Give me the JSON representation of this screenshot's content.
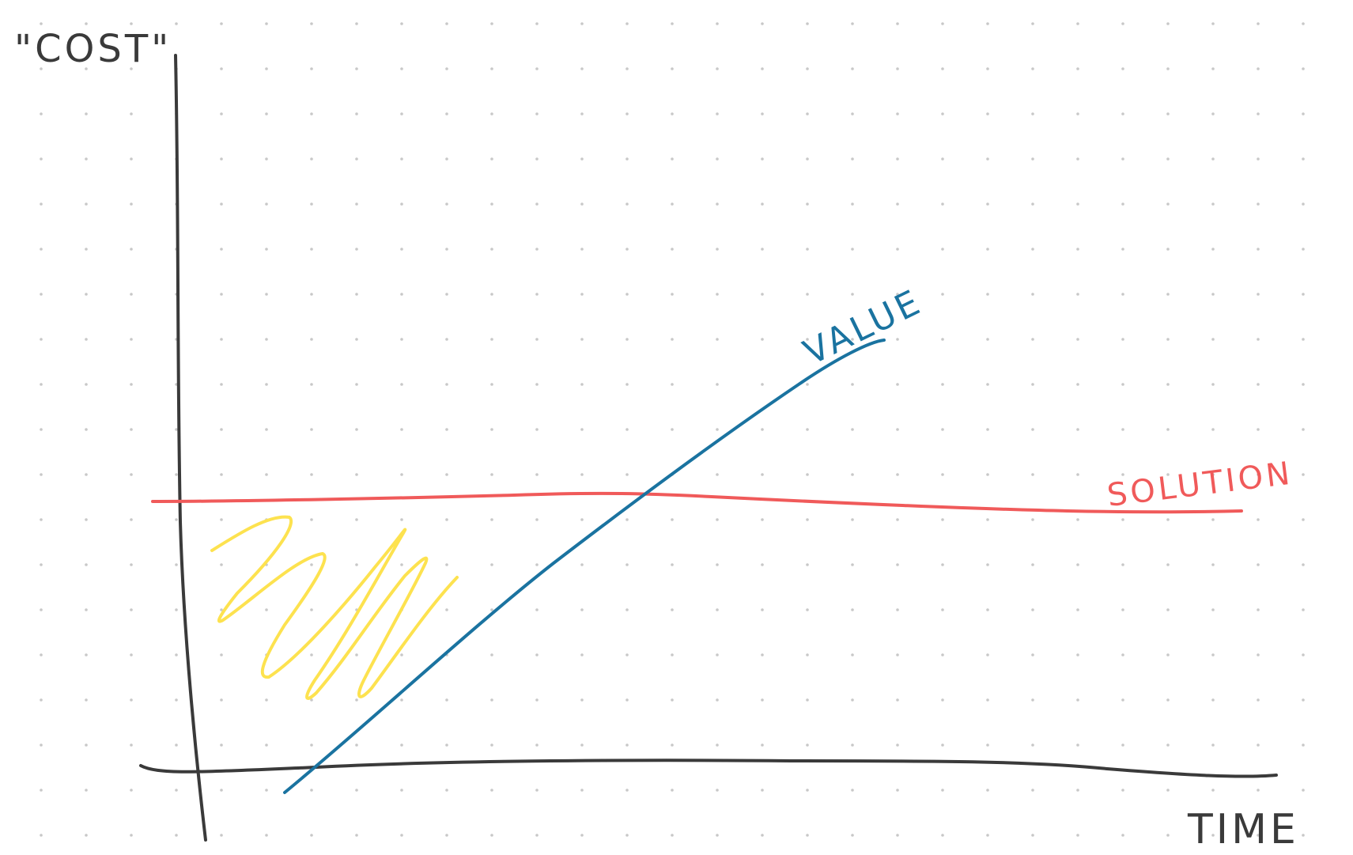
{
  "chart_data": {
    "type": "line",
    "title": "",
    "xlabel": "TIME",
    "ylabel": "\"COST\"",
    "grid": "dot-grid",
    "series": [
      {
        "name": "VALUE",
        "color": "#1a73a0",
        "trend": "rising",
        "x": [
          0.5,
          6.1,
          12.0
        ],
        "y": [
          -0.5,
          7.3,
          13.8
        ]
      },
      {
        "name": "SOLUTION",
        "color": "#f05a5a",
        "trend": "flat",
        "x": [
          -0.5,
          6.0,
          18.0
        ],
        "y": [
          7.4,
          7.5,
          7.1
        ]
      }
    ],
    "annotations": [
      {
        "type": "scribble-fill",
        "color": "#fde24f",
        "region": "below SOLUTION, left of VALUE"
      }
    ],
    "colors": {
      "axes": "#3a3a3a",
      "grid_dot": "#c8c8c8",
      "value": "#1a73a0",
      "solution": "#f05a5a",
      "scribble": "#fde24f"
    }
  }
}
